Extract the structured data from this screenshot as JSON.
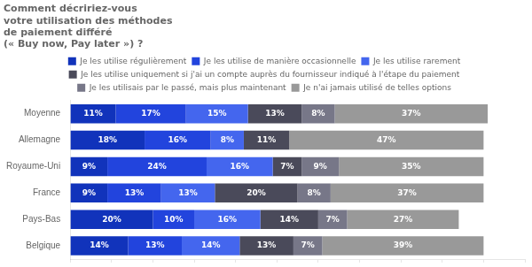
{
  "chart_data": {
    "type": "bar",
    "orientation": "horizontal",
    "stacked": true,
    "title": "Comment décririez-vous\nvotre utilisation des méthodes\nde paiement différé\n(« Buy now, Pay later ») ?",
    "categories": [
      "Moyenne",
      "Allemagne",
      "Royaume-Uni",
      "France",
      "Pays-Bas",
      "Belgique"
    ],
    "series": [
      {
        "name": "Je les utilise régulièrement",
        "color": "#1133bb",
        "values": [
          11,
          18,
          9,
          9,
          20,
          14
        ],
        "value_labels": [
          "11%",
          "18%",
          "9%",
          "9%",
          "20%",
          "14%"
        ]
      },
      {
        "name": "Je les utilise de manière occasionnelle",
        "color": "#2244dd",
        "values": [
          17,
          16,
          24,
          13,
          10,
          13
        ],
        "value_labels": [
          "17%",
          "16%",
          "24%",
          "13%",
          "10%",
          "13%"
        ]
      },
      {
        "name": "Je les utilise rarement",
        "color": "#4466ee",
        "values": [
          15,
          8,
          16,
          13,
          16,
          14
        ],
        "value_labels": [
          "15%",
          "8%",
          "16%",
          "13%",
          "16%",
          "14%"
        ]
      },
      {
        "name": "Je les utilise uniquement si j'ai un compte auprès\ndu fournisseur indiqué à l'étape du paiement",
        "color": "#4a4a5a",
        "values": [
          13,
          11,
          7,
          20,
          14,
          13
        ],
        "value_labels": [
          "13%",
          "11%",
          "7%",
          "20%",
          "14%",
          "13%"
        ]
      },
      {
        "name": "Je les utilisais par le passé, mais plus maintenant",
        "color": "#777788",
        "values": [
          8,
          0,
          9,
          8,
          7,
          7
        ],
        "value_labels": [
          "8%",
          null,
          "9%",
          "8%",
          "7%",
          "7%"
        ]
      },
      {
        "name": "Je n'ai jamais utilisé de telles options",
        "color": "#999999",
        "values": [
          37,
          47,
          35,
          37,
          27,
          39
        ],
        "value_labels": [
          "37%",
          "47%",
          "35%",
          "37%",
          "27%",
          "39%"
        ]
      }
    ],
    "xlim": [
      0,
      110
    ],
    "xticks": [
      0,
      10,
      20,
      30,
      40,
      50,
      60,
      70,
      80,
      90,
      100,
      110
    ],
    "data_labels": true,
    "tick_labels": "y",
    "grid": false,
    "legend": "top"
  }
}
